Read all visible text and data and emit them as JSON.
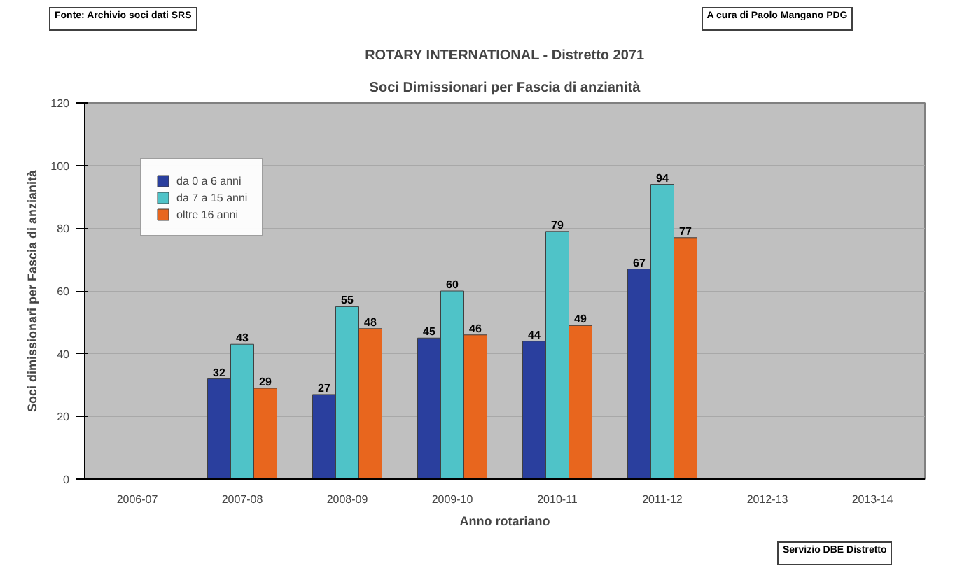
{
  "chart_data": {
    "type": "bar",
    "title": "ROTARY INTERNATIONAL - Distretto 2071",
    "subtitle": "Soci Dimissionari per Fascia di anzianità",
    "xlabel": "Anno rotariano",
    "ylabel": "Soci dimissionari per Fascia di anzianità",
    "categories": [
      "2006-07",
      "2007-08",
      "2008-09",
      "2009-10",
      "2010-11",
      "2011-12",
      "2012-13",
      "2013-14"
    ],
    "series": [
      {
        "name": "da 0 a 6 anni",
        "color": "#2a3f9e",
        "values": [
          null,
          32,
          27,
          45,
          44,
          67,
          null,
          null
        ]
      },
      {
        "name": "da 7 a 15 anni",
        "color": "#4fc3c8",
        "values": [
          null,
          43,
          55,
          60,
          79,
          94,
          null,
          null
        ]
      },
      {
        "name": "oltre 16 anni",
        "color": "#e8661e",
        "values": [
          null,
          29,
          48,
          46,
          49,
          77,
          null,
          null
        ]
      }
    ],
    "ylim": [
      0,
      120
    ],
    "yticks": [
      0,
      20,
      40,
      60,
      80,
      100,
      120
    ],
    "grid": "y",
    "legend": "top left",
    "data_labels": true,
    "annotations": [
      "Fonte: Archivio soci dati SRS",
      "A cura di Paolo Mangano PDG",
      "Servizio DBE Distretto"
    ]
  }
}
